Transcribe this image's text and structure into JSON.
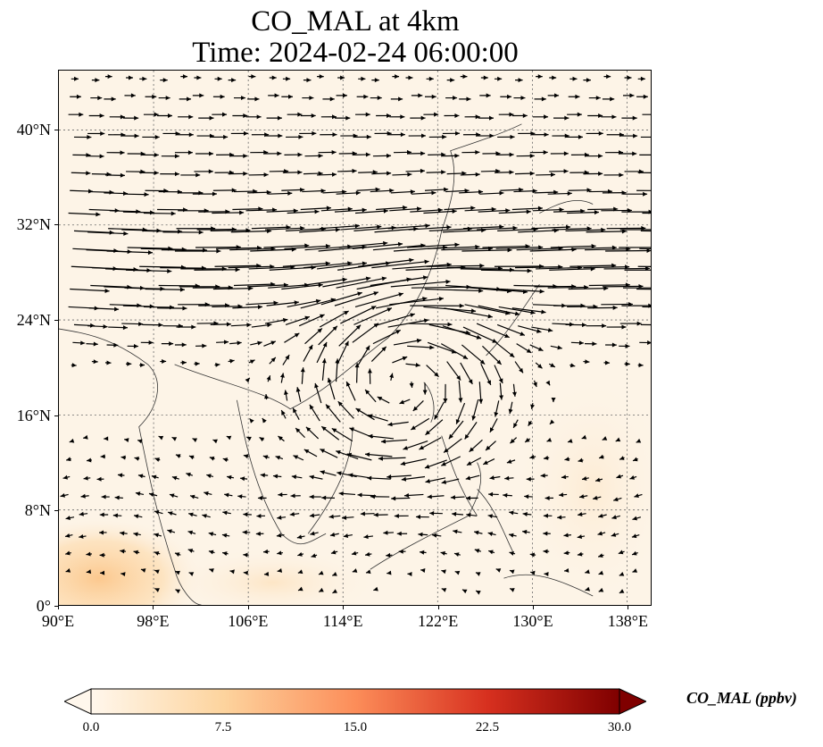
{
  "title": "CO_MAL at 4km",
  "subtitle": "Time: 2024-02-24 06:00:00",
  "map": {
    "type": "wind-vector field over concentration map",
    "extent": {
      "lon": [
        90,
        140
      ],
      "lat": [
        0,
        45
      ]
    },
    "lat_ticks": [
      "40°N",
      "32°N",
      "24°N",
      "16°N",
      "8°N",
      "0°"
    ],
    "lon_ticks": [
      "90°E",
      "98°E",
      "106°E",
      "114°E",
      "122°E",
      "130°E",
      "138°E"
    ],
    "gridlines": "dotted",
    "background_color": "#fdf4e7",
    "high_concentration_region": "southwest corner near 90-100°E, 0-6°N"
  },
  "colorbar": {
    "label": "CO_MAL (ppbv)",
    "min": 0.0,
    "max": 30.0,
    "ticks": [
      "0.0",
      "7.5",
      "15.0",
      "22.5",
      "30.0"
    ],
    "colormap": "OrRd",
    "colors": [
      "#fff7ec",
      "#fdd49e",
      "#fc8d59",
      "#d7301f",
      "#7f0000"
    ],
    "extend": "both"
  }
}
